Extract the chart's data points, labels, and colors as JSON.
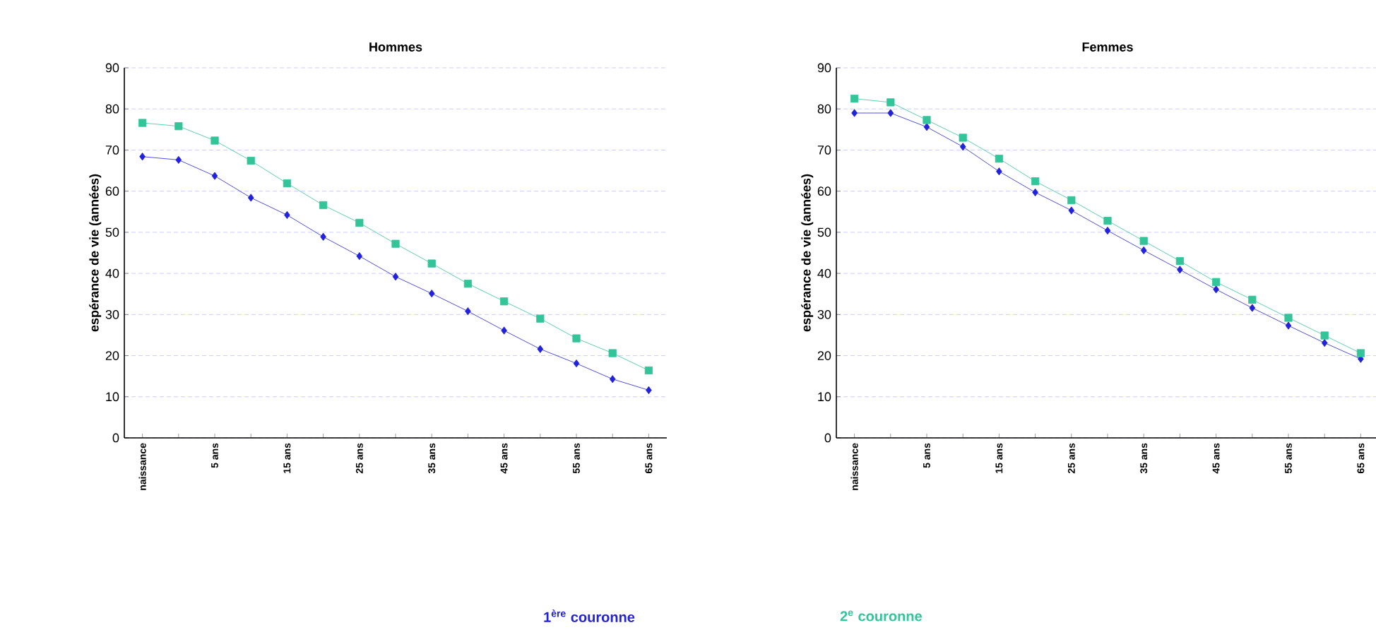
{
  "chart_data": [
    {
      "type": "line",
      "title": "Hommes",
      "ylabel": "espérance de vie (années)",
      "categories": [
        "naissance",
        null,
        "5 ans",
        null,
        "15 ans",
        null,
        "25 ans",
        null,
        "35 ans",
        null,
        "45 ans",
        null,
        "55 ans",
        null,
        "65 ans"
      ],
      "series": [
        {
          "name": "1$^{ère}$ couronne",
          "color": "#2222dd",
          "marker": "diamond",
          "values": [
            68.4,
            67.6,
            63.7,
            58.4,
            54.2,
            48.9,
            44.2,
            39.2,
            35.1,
            30.8,
            26.1,
            21.6,
            18.1,
            14.3,
            11.6
          ]
        },
        {
          "name": "2$^{e}$ couronne",
          "color": "#33c49a",
          "marker": "square",
          "values": [
            76.6,
            75.8,
            72.3,
            67.4,
            61.9,
            56.6,
            52.3,
            47.2,
            42.4,
            37.5,
            33.2,
            29.0,
            24.2,
            20.6,
            16.4
          ]
        }
      ],
      "ylim": [
        0,
        90
      ],
      "yticks": [
        0,
        10,
        20,
        30,
        40,
        50,
        60,
        70,
        80,
        90
      ],
      "grid": "y",
      "legend": "bottom",
      "line_style": "solid"
    },
    {
      "type": "line",
      "title": "Femmes",
      "ylabel": "espérance de vie (années)",
      "categories": [
        "naissance",
        null,
        "5 ans",
        null,
        "15 ans",
        null,
        "25 ans",
        null,
        "35 ans",
        null,
        "45 ans",
        null,
        "55 ans",
        null,
        "65 ans"
      ],
      "series": [
        {
          "color": "#2222dd",
          "marker": "diamond",
          "values": [
            79.0,
            79.0,
            75.6,
            70.8,
            64.8,
            59.7,
            55.3,
            50.4,
            45.6,
            40.9,
            36.1,
            31.6,
            27.3,
            23.1,
            19.2
          ]
        },
        {
          "color": "#33c49a",
          "marker": "square",
          "values": [
            82.5,
            81.6,
            77.3,
            73.0,
            67.9,
            62.4,
            57.8,
            52.8,
            47.9,
            43.0,
            37.9,
            33.6,
            29.2,
            24.9,
            20.6
          ]
        }
      ],
      "ylim": [
        0,
        90
      ],
      "yticks": [
        0,
        10,
        20,
        30,
        40,
        50,
        60,
        70,
        80,
        90
      ],
      "grid": "y",
      "line_style": "solid"
    }
  ]
}
